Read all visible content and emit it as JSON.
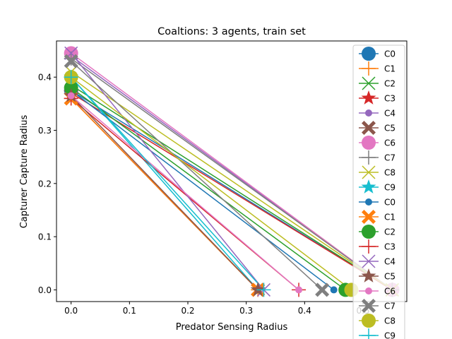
{
  "chart_data": {
    "type": "line",
    "title": "Coaltions: 3 agents, train set",
    "xlabel": "Predator Sensing Radius",
    "ylabel": "Capturer Capture Radius",
    "xlim": [
      -0.025,
      0.575
    ],
    "ylim": [
      -0.022,
      0.468
    ],
    "xticks": [
      0.0,
      0.1,
      0.2,
      0.3,
      0.4,
      0.5
    ],
    "yticks": [
      0.0,
      0.1,
      0.2,
      0.3,
      0.4
    ],
    "xtick_labels": [
      "0.0",
      "0.1",
      "0.2",
      "0.3",
      "0.4",
      "0.5"
    ],
    "ytick_labels": [
      "0.0",
      "0.1",
      "0.2",
      "0.3",
      "0.4"
    ],
    "grid": false,
    "legend_position": "right",
    "series": [
      {
        "name": "C0",
        "color": "#1f77b4",
        "marker": "circle-large",
        "x": [
          0.0,
          0.55
        ],
        "y": [
          0.375,
          0.0
        ]
      },
      {
        "name": "C1",
        "color": "#ff7f0e",
        "marker": "plus",
        "x": [
          0.0,
          0.32
        ],
        "y": [
          0.36,
          0.0
        ]
      },
      {
        "name": "C2",
        "color": "#2ca02c",
        "marker": "x-large",
        "x": [
          0.0,
          0.55
        ],
        "y": [
          0.385,
          0.0
        ]
      },
      {
        "name": "C3",
        "color": "#d62728",
        "marker": "star",
        "x": [
          0.0,
          0.55
        ],
        "y": [
          0.37,
          0.0
        ]
      },
      {
        "name": "C4",
        "color": "#9467bd",
        "marker": "circle",
        "x": [
          0.0,
          0.55
        ],
        "y": [
          0.44,
          0.0
        ]
      },
      {
        "name": "C5",
        "color": "#8c564b",
        "marker": "X-filled",
        "x": [
          0.0,
          0.32
        ],
        "y": [
          0.36,
          0.0
        ]
      },
      {
        "name": "C6",
        "color": "#e377c2",
        "marker": "circle-large",
        "x": [
          0.0,
          0.55
        ],
        "y": [
          0.445,
          0.0
        ]
      },
      {
        "name": "C7",
        "color": "#7f7f7f",
        "marker": "plus",
        "x": [
          0.0,
          0.55
        ],
        "y": [
          0.435,
          0.0
        ]
      },
      {
        "name": "C8",
        "color": "#bcbd22",
        "marker": "x-large",
        "x": [
          0.0,
          0.55
        ],
        "y": [
          0.41,
          0.0
        ]
      },
      {
        "name": "C9",
        "color": "#17becf",
        "marker": "star",
        "x": [
          0.0,
          0.32
        ],
        "y": [
          0.4,
          0.0
        ]
      },
      {
        "name": "C0",
        "color": "#1f77b4",
        "marker": "circle",
        "x": [
          0.0,
          0.45
        ],
        "y": [
          0.375,
          0.0
        ]
      },
      {
        "name": "C1",
        "color": "#ff7f0e",
        "marker": "X-filled",
        "x": [
          0.0,
          0.32
        ],
        "y": [
          0.36,
          0.0
        ]
      },
      {
        "name": "C2",
        "color": "#2ca02c",
        "marker": "circle-large",
        "x": [
          0.0,
          0.47
        ],
        "y": [
          0.38,
          0.0
        ]
      },
      {
        "name": "C3",
        "color": "#d62728",
        "marker": "plus",
        "x": [
          0.0,
          0.39
        ],
        "y": [
          0.36,
          0.0
        ]
      },
      {
        "name": "C4",
        "color": "#9467bd",
        "marker": "x-large",
        "x": [
          0.0,
          0.33
        ],
        "y": [
          0.445,
          0.0
        ]
      },
      {
        "name": "C5",
        "color": "#8c564b",
        "marker": "star",
        "x": [
          0.0,
          0.32
        ],
        "y": [
          0.365,
          0.0
        ]
      },
      {
        "name": "C6",
        "color": "#e377c2",
        "marker": "circle",
        "x": [
          0.0,
          0.39
        ],
        "y": [
          0.365,
          0.0
        ]
      },
      {
        "name": "C7",
        "color": "#7f7f7f",
        "marker": "X-filled",
        "x": [
          0.0,
          0.43
        ],
        "y": [
          0.43,
          0.0
        ]
      },
      {
        "name": "C8",
        "color": "#bcbd22",
        "marker": "circle-large",
        "x": [
          0.0,
          0.48
        ],
        "y": [
          0.4,
          0.0
        ]
      },
      {
        "name": "C9",
        "color": "#17becf",
        "marker": "plus",
        "x": [
          0.0,
          0.33
        ],
        "y": [
          0.4,
          0.0
        ]
      }
    ]
  }
}
